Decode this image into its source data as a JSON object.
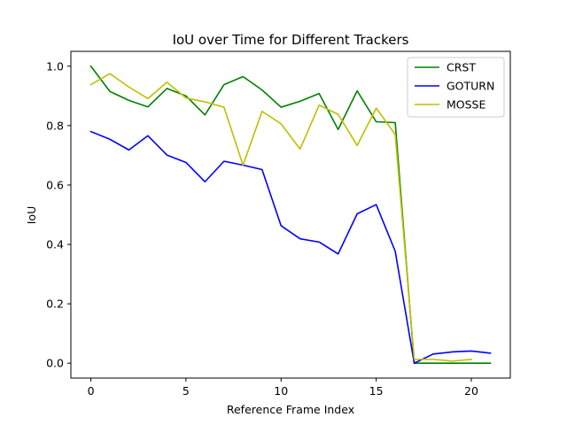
{
  "chart_data": {
    "type": "line",
    "title": "IoU over Time for Different Trackers",
    "xlabel": "Reference Frame Index",
    "ylabel": "IoU",
    "xlim": [
      -1.05,
      22.05
    ],
    "ylim": [
      -0.05,
      1.05
    ],
    "xticks": [
      0,
      5,
      10,
      15,
      20
    ],
    "yticks": [
      0.0,
      0.2,
      0.4,
      0.6,
      0.8,
      1.0
    ],
    "grid": false,
    "legend_position": "top-right",
    "series": [
      {
        "name": "CRST",
        "color": "#008000",
        "x": [
          0,
          1,
          2,
          3,
          4,
          5,
          6,
          7,
          8,
          9,
          10,
          11,
          12,
          13,
          14,
          15,
          16,
          17,
          18,
          19,
          20,
          21
        ],
        "y": [
          1.0,
          0.915,
          0.885,
          0.863,
          0.925,
          0.9,
          0.836,
          0.938,
          0.965,
          0.92,
          0.862,
          0.882,
          0.908,
          0.787,
          0.917,
          0.813,
          0.81,
          0.0,
          0.0,
          0.0,
          0.0,
          0.0
        ]
      },
      {
        "name": "GOTURN",
        "color": "#0000ff",
        "x": [
          0,
          1,
          2,
          3,
          4,
          5,
          6,
          7,
          8,
          9,
          10,
          11,
          12,
          13,
          14,
          15,
          16,
          17,
          18,
          19,
          20,
          21
        ],
        "y": [
          0.78,
          0.754,
          0.718,
          0.766,
          0.701,
          0.676,
          0.611,
          0.68,
          0.667,
          0.652,
          0.463,
          0.419,
          0.408,
          0.368,
          0.503,
          0.534,
          0.377,
          0.0,
          0.031,
          0.038,
          0.041,
          0.034
        ]
      },
      {
        "name": "MOSSE",
        "color": "#bfbf00",
        "x": [
          0,
          1,
          2,
          3,
          4,
          5,
          6,
          7,
          8,
          9,
          10,
          11,
          12,
          13,
          14,
          15,
          16,
          17,
          18,
          19,
          20
        ],
        "y": [
          0.938,
          0.975,
          0.93,
          0.891,
          0.946,
          0.893,
          0.88,
          0.862,
          0.667,
          0.848,
          0.806,
          0.721,
          0.869,
          0.838,
          0.733,
          0.859,
          0.77,
          0.013,
          0.013,
          0.007,
          0.013
        ]
      }
    ]
  }
}
